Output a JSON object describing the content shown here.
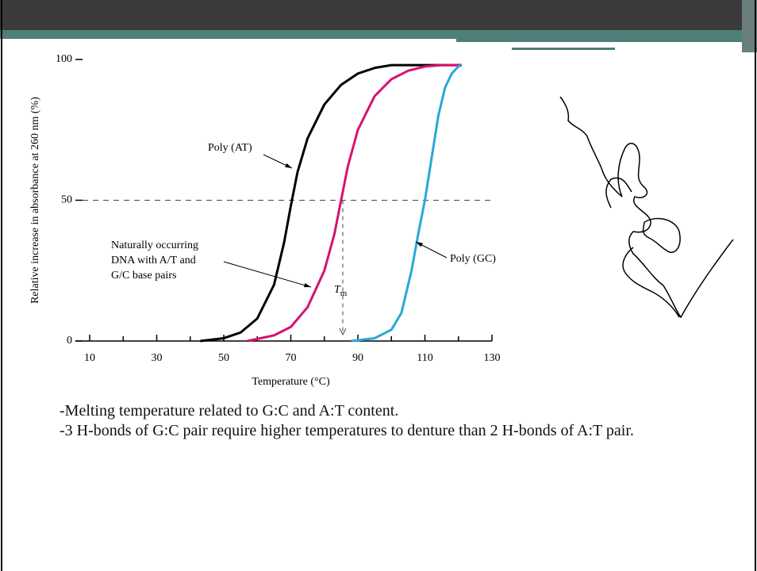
{
  "chart_data": {
    "type": "line",
    "x_label": "Temperature (°C)",
    "y_label": "Relative increase in absorbance at 260 nm (%)",
    "xlim": [
      10,
      130
    ],
    "xticks": [
      10,
      30,
      50,
      70,
      90,
      110,
      130
    ],
    "xminorticks": [
      20,
      40,
      60,
      80,
      100,
      120
    ],
    "ylim": [
      0,
      100
    ],
    "yticks": [
      0,
      50,
      100
    ],
    "hline": 50,
    "tm": 85.5,
    "tm_label": {
      "symbol": "T",
      "subscript": "m"
    },
    "series": [
      {
        "name": "Poly (AT)",
        "color": "#000000",
        "x": [
          43,
          50,
          55,
          60,
          65,
          68,
          70,
          72,
          75,
          80,
          85,
          90,
          95,
          100,
          110,
          121
        ],
        "values": [
          0,
          1,
          3,
          8,
          20,
          35,
          48,
          60,
          72,
          84,
          91,
          95,
          97,
          98,
          98,
          98
        ]
      },
      {
        "name": "Naturally occurring",
        "lines": [
          "Naturally occurring",
          "DNA with A/T and",
          "G/C base pairs"
        ],
        "color": "#d6136f",
        "x": [
          57,
          65,
          70,
          75,
          80,
          83,
          85,
          87,
          90,
          95,
          100,
          105,
          110,
          115,
          121
        ],
        "values": [
          0,
          2,
          5,
          12,
          25,
          38,
          50,
          62,
          75,
          87,
          93,
          96,
          97.5,
          98,
          98
        ]
      },
      {
        "name": "Poly (GC)",
        "color": "#2aa7d8",
        "x": [
          88,
          95,
          100,
          103,
          106,
          108,
          110,
          112,
          114,
          116,
          118,
          120,
          121
        ],
        "values": [
          0,
          1,
          4,
          10,
          25,
          38,
          50,
          65,
          80,
          90,
          95,
          97.5,
          98
        ]
      }
    ]
  },
  "slide": {
    "bullets": [
      "-Melting temperature related to G:C and A:T content.",
      "-3 H-bonds of G:C pair require higher temperatures to denture than 2 H-bonds of A:T pair."
    ]
  }
}
